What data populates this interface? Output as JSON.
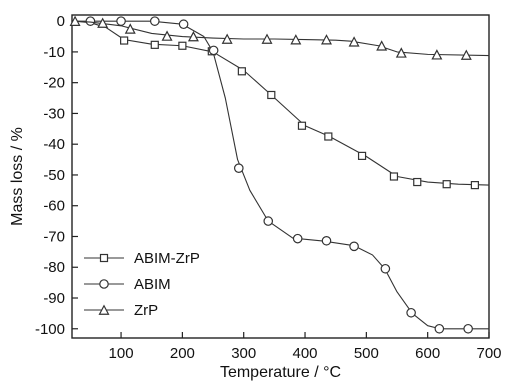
{
  "chart_data": {
    "type": "line",
    "xlabel": "Temperature / °C",
    "ylabel": "Mass loss / %",
    "xlim": [
      20,
      700
    ],
    "ylim": [
      -103,
      2
    ],
    "xticks": [
      100,
      200,
      300,
      400,
      500,
      600,
      700
    ],
    "yticks": [
      0,
      -10,
      -20,
      -30,
      -40,
      -50,
      -60,
      -70,
      -80,
      -90,
      -100
    ],
    "grid": false,
    "legend_position": "bottom-left",
    "series": [
      {
        "name": "ABIM-ZrP",
        "marker": "square",
        "points": [
          [
            25,
            0
          ],
          [
            50,
            -0.5
          ],
          [
            75,
            -2
          ],
          [
            105,
            -6
          ],
          [
            150,
            -7.5
          ],
          [
            200,
            -8
          ],
          [
            250,
            -10
          ],
          [
            300,
            -16
          ],
          [
            345,
            -24
          ],
          [
            400,
            -34
          ],
          [
            440,
            -37.5
          ],
          [
            500,
            -44
          ],
          [
            550,
            -50.5
          ],
          [
            600,
            -52.3
          ],
          [
            650,
            -53
          ],
          [
            700,
            -53.3
          ]
        ],
        "markers": [
          [
            105,
            -6.3
          ],
          [
            155,
            -7.7
          ],
          [
            200,
            -8
          ],
          [
            248,
            -9.8
          ],
          [
            297,
            -16.3
          ],
          [
            345,
            -24
          ],
          [
            395,
            -34
          ],
          [
            438,
            -37.5
          ],
          [
            493,
            -43.8
          ],
          [
            545,
            -50.5
          ],
          [
            583,
            -52.3
          ],
          [
            631,
            -53
          ],
          [
            677,
            -53.3
          ]
        ]
      },
      {
        "name": "ABIM",
        "marker": "circle",
        "points": [
          [
            25,
            0
          ],
          [
            150,
            0
          ],
          [
            200,
            -1
          ],
          [
            235,
            -5
          ],
          [
            250,
            -10
          ],
          [
            270,
            -25
          ],
          [
            290,
            -45
          ],
          [
            310,
            -55
          ],
          [
            340,
            -65
          ],
          [
            380,
            -70.5
          ],
          [
            430,
            -71.5
          ],
          [
            480,
            -73
          ],
          [
            510,
            -76
          ],
          [
            530,
            -80.5
          ],
          [
            550,
            -88
          ],
          [
            575,
            -95
          ],
          [
            600,
            -99
          ],
          [
            620,
            -100
          ],
          [
            700,
            -100
          ]
        ],
        "markers": [
          [
            50,
            0
          ],
          [
            100,
            0
          ],
          [
            155,
            0
          ],
          [
            202,
            -1
          ],
          [
            251,
            -9.5
          ],
          [
            292,
            -47.8
          ],
          [
            340,
            -65
          ],
          [
            388,
            -70.7
          ],
          [
            435,
            -71.4
          ],
          [
            480,
            -73.2
          ],
          [
            531,
            -80.5
          ],
          [
            573,
            -94.8
          ],
          [
            619,
            -100
          ],
          [
            666,
            -100
          ]
        ]
      },
      {
        "name": "ZrP",
        "marker": "triangle",
        "points": [
          [
            25,
            0
          ],
          [
            50,
            -0.3
          ],
          [
            100,
            -1.5
          ],
          [
            150,
            -4
          ],
          [
            200,
            -5
          ],
          [
            250,
            -5.5
          ],
          [
            300,
            -5.8
          ],
          [
            350,
            -5.8
          ],
          [
            400,
            -6
          ],
          [
            450,
            -6.2
          ],
          [
            475,
            -6.5
          ],
          [
            520,
            -8
          ],
          [
            550,
            -10
          ],
          [
            600,
            -10.8
          ],
          [
            700,
            -11.2
          ]
        ],
        "markers": [
          [
            25,
            0
          ],
          [
            70,
            -0.6
          ],
          [
            115,
            -2.5
          ],
          [
            175,
            -4.8
          ],
          [
            218,
            -5
          ],
          [
            273,
            -5.8
          ],
          [
            338,
            -5.8
          ],
          [
            385,
            -6
          ],
          [
            435,
            -6
          ],
          [
            480,
            -6.7
          ],
          [
            525,
            -8
          ],
          [
            557,
            -10.3
          ],
          [
            615,
            -10.9
          ],
          [
            663,
            -11
          ]
        ]
      }
    ]
  }
}
